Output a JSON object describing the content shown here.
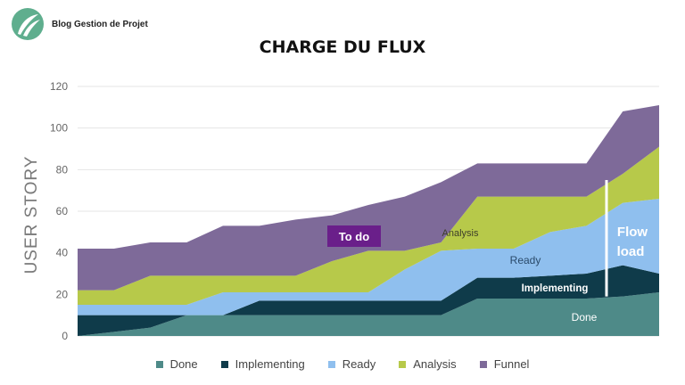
{
  "brand": {
    "name": "Blog Gestion de Projet",
    "logo_icon": "leaf-logo-icon",
    "logo_color": "#5fae8e"
  },
  "title": "CHARGE DU FLUX",
  "chart_data": {
    "type": "area",
    "stacked": true,
    "ylabel": "USER STORY",
    "ylim": [
      0,
      120
    ],
    "yticks": [
      0,
      20,
      40,
      60,
      80,
      100,
      120
    ],
    "grid": true,
    "legend_position": "bottom",
    "x": [
      0,
      1,
      2,
      3,
      4,
      5,
      6,
      7,
      8,
      9,
      10,
      11,
      12,
      13,
      14,
      15,
      16
    ],
    "series": [
      {
        "name": "Done",
        "color": "#4e8a88",
        "values": [
          0,
          2,
          4,
          10,
          10,
          10,
          10,
          10,
          10,
          10,
          10,
          18,
          18,
          18,
          18,
          19,
          21
        ]
      },
      {
        "name": "Implementing",
        "color": "#0f3b4a",
        "values": [
          10,
          8,
          6,
          0,
          0,
          7,
          7,
          7,
          7,
          7,
          7,
          10,
          10,
          11,
          12,
          15,
          9
        ]
      },
      {
        "name": "Ready",
        "color": "#8fbfee",
        "values": [
          5,
          5,
          5,
          5,
          11,
          4,
          4,
          4,
          4,
          15,
          24,
          14,
          14,
          21,
          23,
          30,
          36
        ]
      },
      {
        "name": "Analysis",
        "color": "#b7c94a",
        "values": [
          7,
          7,
          14,
          14,
          8,
          8,
          8,
          15,
          20,
          9,
          4,
          25,
          25,
          17,
          14,
          14,
          25
        ]
      },
      {
        "name": "Funnel",
        "color": "#7e6a99",
        "values": [
          20,
          20,
          16,
          16,
          24,
          24,
          27,
          22,
          22,
          26,
          29,
          16,
          16,
          16,
          16,
          30,
          20
        ]
      }
    ],
    "annotations": {
      "todo": "To do",
      "analysis": "Analysis",
      "ready": "Ready",
      "implementing": "Implementing",
      "done": "Done",
      "flow_load_1": "Flow",
      "flow_load_2": "load",
      "todo_box_color": "#6a1f8a",
      "flow_line_from": 19,
      "flow_line_to": 75
    }
  }
}
